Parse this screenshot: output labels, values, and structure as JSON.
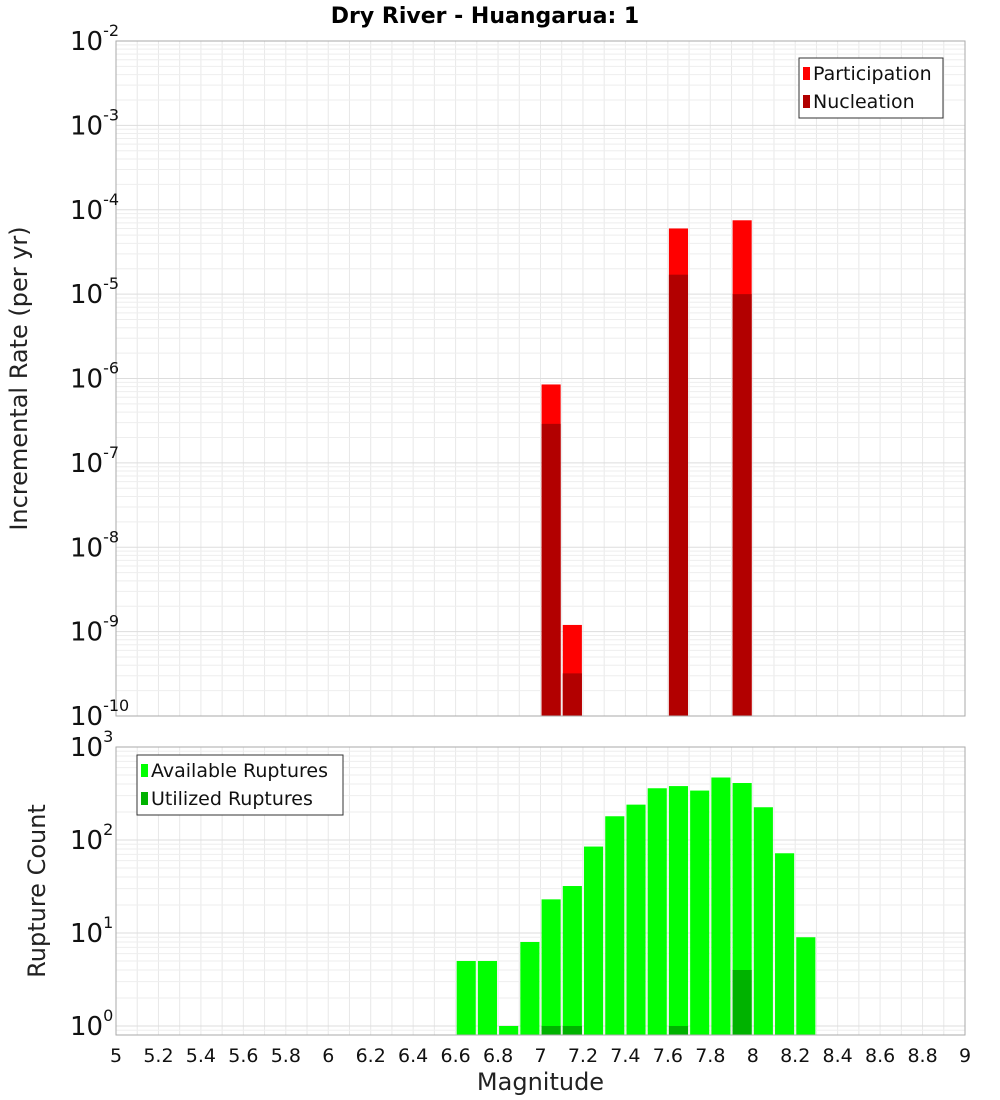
{
  "chart_data": [
    {
      "type": "bar",
      "title": "Dry River - Huangarua: 1",
      "xlabel": "",
      "ylabel": "Incremental Rate (per yr)",
      "y_scale": "log",
      "xlim": [
        5,
        9
      ],
      "ylim": [
        1e-10,
        0.01
      ],
      "y_ticks": [
        {
          "base": "10",
          "exp": "-10",
          "value": 1e-10
        },
        {
          "base": "10",
          "exp": "-9",
          "value": 1e-09
        },
        {
          "base": "10",
          "exp": "-8",
          "value": 1e-08
        },
        {
          "base": "10",
          "exp": "-7",
          "value": 1e-07
        },
        {
          "base": "10",
          "exp": "-6",
          "value": 1e-06
        },
        {
          "base": "10",
          "exp": "-5",
          "value": 1e-05
        },
        {
          "base": "10",
          "exp": "-4",
          "value": 0.0001
        },
        {
          "base": "10",
          "exp": "-3",
          "value": 0.001
        },
        {
          "base": "10",
          "exp": "-2",
          "value": 0.01
        }
      ],
      "legend_position": "top-right",
      "grid": true,
      "bar_width": 0.09,
      "series": [
        {
          "name": "Participation",
          "color": "#ff0000",
          "x": [
            7.05,
            7.15,
            7.65,
            7.95
          ],
          "values": [
            8.5e-07,
            1.2e-09,
            6e-05,
            7.5e-05
          ]
        },
        {
          "name": "Nucleation",
          "color": "#b20000",
          "x": [
            7.05,
            7.15,
            7.65,
            7.95
          ],
          "values": [
            2.9e-07,
            3.2e-10,
            1.7e-05,
            1e-05
          ]
        }
      ]
    },
    {
      "type": "bar",
      "title": "",
      "xlabel": "Magnitude",
      "ylabel": "Rupture Count",
      "y_scale": "log",
      "xlim": [
        5,
        9
      ],
      "ylim": [
        0.8,
        1000
      ],
      "y_ticks": [
        {
          "base": "10",
          "exp": "0",
          "value": 1
        },
        {
          "base": "10",
          "exp": "1",
          "value": 10
        },
        {
          "base": "10",
          "exp": "2",
          "value": 100
        },
        {
          "base": "10",
          "exp": "3",
          "value": 1000
        }
      ],
      "x_ticks": [
        "5",
        "5.2",
        "5.4",
        "5.6",
        "5.8",
        "6",
        "6.2",
        "6.4",
        "6.6",
        "6.8",
        "7",
        "7.2",
        "7.4",
        "7.6",
        "7.8",
        "8",
        "8.2",
        "8.4",
        "8.6",
        "8.8",
        "9"
      ],
      "legend_position": "top-left",
      "grid": true,
      "bar_width": 0.09,
      "series": [
        {
          "name": "Available Ruptures",
          "color": "#00ff00",
          "x": [
            6.65,
            6.75,
            6.85,
            6.95,
            7.05,
            7.15,
            7.25,
            7.35,
            7.45,
            7.55,
            7.65,
            7.75,
            7.85,
            7.95,
            8.05,
            8.15,
            8.25
          ],
          "values": [
            5,
            5,
            1,
            8,
            23,
            32,
            85,
            180,
            240,
            360,
            380,
            340,
            470,
            410,
            225,
            72,
            9
          ]
        },
        {
          "name": "Utilized Ruptures",
          "color": "#00b200",
          "x": [
            7.05,
            7.15,
            7.65,
            7.95
          ],
          "values": [
            1,
            1,
            1,
            4
          ]
        }
      ]
    }
  ]
}
